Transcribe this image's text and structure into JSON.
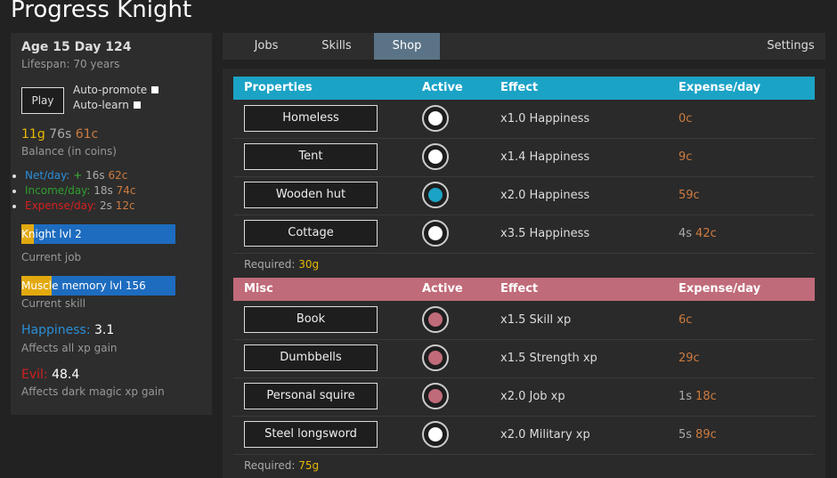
{
  "header": {
    "title": "Progress Knight"
  },
  "sidebar": {
    "age": "Age 15 Day 124",
    "lifespan": "Lifespan: 70 years",
    "play_button": "Play",
    "auto_promote": "Auto-promote",
    "auto_learn": "Auto-learn",
    "balance": {
      "g": "11g",
      "s": "76s",
      "c": "61c"
    },
    "balance_caption": "Balance (in coins)",
    "net": {
      "label": "Net/day:",
      "sign": "+",
      "s": "16s",
      "c": "62c"
    },
    "income": {
      "label": "Income/day:",
      "s": "18s",
      "c": "74c"
    },
    "expense": {
      "label": "Expense/day:",
      "s": "2s",
      "c": "12c"
    },
    "job": {
      "label": "Knight lvl 2",
      "caption": "Current job"
    },
    "skill": {
      "label": "Muscle memory lvl 156",
      "caption": "Current skill"
    },
    "happiness": {
      "label": "Happiness:",
      "value": 3.1,
      "caption": "Affects all xp gain"
    },
    "evil": {
      "label": "Evil:",
      "value": 48.4,
      "caption": "Affects dark magic xp gain"
    }
  },
  "tabs": {
    "items": [
      "Jobs",
      "Skills",
      "Shop"
    ],
    "selected": 2,
    "settings": "Settings"
  },
  "sections": [
    {
      "header": [
        "Properties",
        "Active",
        "Effect",
        "Expense/day"
      ],
      "color": "#1ba3c6",
      "rows": [
        {
          "name": "Homeless",
          "active": false,
          "effect": "x1.0 Happiness",
          "expense": {
            "c": "0c"
          }
        },
        {
          "name": "Tent",
          "active": false,
          "effect": "x1.4 Happiness",
          "expense": {
            "c": "9c"
          }
        },
        {
          "name": "Wooden hut",
          "active": true,
          "effect": "x2.0 Happiness",
          "expense": {
            "c": "59c"
          }
        },
        {
          "name": "Cottage",
          "active": false,
          "effect": "x3.5 Happiness",
          "expense": {
            "s": "4s",
            "c": "42c"
          }
        }
      ],
      "required_label": "Required:",
      "required": "30g"
    },
    {
      "header": [
        "Misc",
        "Active",
        "Effect",
        "Expense/day"
      ],
      "color": "#c06b79",
      "rows": [
        {
          "name": "Book",
          "active": true,
          "effect": "x1.5 Skill xp",
          "expense": {
            "c": "6c"
          }
        },
        {
          "name": "Dumbbells",
          "active": true,
          "effect": "x1.5 Strength xp",
          "expense": {
            "c": "29c"
          }
        },
        {
          "name": "Personal squire",
          "active": true,
          "effect": "x2.0 Job xp",
          "expense": {
            "s": "1s",
            "c": "18c"
          }
        },
        {
          "name": "Steel longsword",
          "active": false,
          "effect": "x2.0 Military xp",
          "expense": {
            "s": "5s",
            "c": "89c"
          }
        }
      ],
      "required_label": "Required:",
      "required": "75g"
    }
  ]
}
